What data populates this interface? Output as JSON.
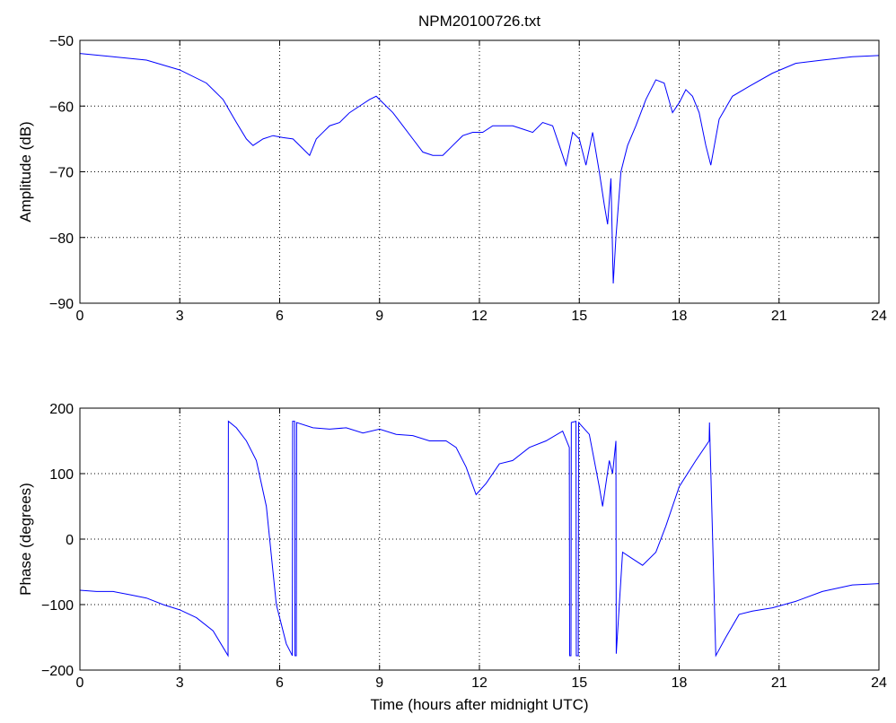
{
  "figure": {
    "title": "NPM20100726.txt",
    "background": "#ffffff",
    "line_color": "#0000ff"
  },
  "chart_data": [
    {
      "type": "line",
      "title": "NPM20100726.txt",
      "xlabel": "",
      "ylabel": "Amplitude (dB)",
      "xlim": [
        0,
        24
      ],
      "ylim": [
        -90,
        -50
      ],
      "xticks": [
        0,
        3,
        6,
        9,
        12,
        15,
        18,
        21,
        24
      ],
      "yticks": [
        -90,
        -80,
        -70,
        -60,
        -50
      ],
      "xtick_labels": [
        "0",
        "3",
        "6",
        "9",
        "12",
        "15",
        "18",
        "21",
        "24"
      ],
      "ytick_labels": [
        "−90",
        "−80",
        "−70",
        "−60",
        "−50"
      ],
      "grid": true,
      "series": [
        {
          "color": "#0000ff",
          "x": [
            0,
            1,
            2,
            3,
            3.8,
            4.3,
            4.7,
            5.0,
            5.2,
            5.5,
            5.8,
            6.1,
            6.4,
            6.7,
            6.9,
            7.1,
            7.3,
            7.5,
            7.8,
            8.1,
            8.4,
            8.7,
            8.9,
            9.1,
            9.4,
            9.7,
            10.0,
            10.3,
            10.6,
            10.9,
            11.2,
            11.5,
            11.8,
            12.1,
            12.4,
            12.7,
            13.0,
            13.3,
            13.6,
            13.9,
            14.2,
            14.4,
            14.6,
            14.8,
            15.0,
            15.2,
            15.4,
            15.6,
            15.75,
            15.85,
            15.95,
            16.02,
            16.1,
            16.25,
            16.45,
            16.7,
            17.0,
            17.3,
            17.55,
            17.8,
            18.0,
            18.2,
            18.4,
            18.6,
            18.8,
            18.95,
            19.2,
            19.6,
            20.1,
            20.8,
            21.5,
            22.3,
            23.2,
            24
          ],
          "y": [
            -52,
            -52.5,
            -53,
            -54.5,
            -56.5,
            -59,
            -62.5,
            -65,
            -66,
            -65,
            -64.5,
            -64.8,
            -65,
            -66.5,
            -67.5,
            -65,
            -64,
            -63,
            -62.5,
            -61,
            -60,
            -59,
            -58.5,
            -59.5,
            -61,
            -63,
            -65,
            -67,
            -67.5,
            -67.5,
            -66,
            -64.5,
            -64,
            -64,
            -63,
            -63,
            -63,
            -63.5,
            -64,
            -62.5,
            -63,
            -66,
            -69,
            -64,
            -65,
            -69,
            -64,
            -70,
            -75,
            -78,
            -71,
            -87,
            -80,
            -70,
            -66,
            -63,
            -59,
            -56,
            -56.5,
            -61,
            -59.5,
            -57.5,
            -58.5,
            -61,
            -66,
            -69,
            -62,
            -58.5,
            -57,
            -55,
            -53.5,
            -53,
            -52.5,
            -52.3
          ]
        }
      ]
    },
    {
      "type": "line",
      "title": "",
      "xlabel": "Time (hours after midnight UTC)",
      "ylabel": "Phase (degrees)",
      "xlim": [
        0,
        24
      ],
      "ylim": [
        -200,
        200
      ],
      "xticks": [
        0,
        3,
        6,
        9,
        12,
        15,
        18,
        21,
        24
      ],
      "yticks": [
        -200,
        -100,
        0,
        100,
        200
      ],
      "xtick_labels": [
        "0",
        "3",
        "6",
        "9",
        "12",
        "15",
        "18",
        "21",
        "24"
      ],
      "ytick_labels": [
        "−200",
        "−100",
        "0",
        "100",
        "200"
      ],
      "grid": true,
      "series": [
        {
          "color": "#0000ff",
          "x": [
            0,
            0.5,
            1,
            1.5,
            2,
            2.5,
            3,
            3.5,
            4,
            4.45,
            4.46,
            4.7,
            5.0,
            5.3,
            5.6,
            5.9,
            6.2,
            6.38,
            6.39,
            6.45,
            6.46,
            6.5,
            6.51,
            7.0,
            7.5,
            8.0,
            8.5,
            9.0,
            9.5,
            10.0,
            10.5,
            11.0,
            11.3,
            11.6,
            11.9,
            12.2,
            12.6,
            13.0,
            13.5,
            14.0,
            14.5,
            14.7,
            14.71,
            14.75,
            14.76,
            14.9,
            14.91,
            14.97,
            14.98,
            15.3,
            15.6,
            15.7,
            15.9,
            16.0,
            16.1,
            16.11,
            16.3,
            16.6,
            16.9,
            17.3,
            17.6,
            18.0,
            18.5,
            18.9,
            18.91,
            19.1,
            19.4,
            19.8,
            20.2,
            20.8,
            21.5,
            22.3,
            23.2,
            24
          ],
          "y": [
            -78,
            -80,
            -80,
            -85,
            -90,
            -100,
            -108,
            -120,
            -140,
            -178,
            180,
            170,
            150,
            120,
            50,
            -100,
            -160,
            -178,
            180,
            180,
            -178,
            -178,
            178,
            170,
            168,
            170,
            162,
            168,
            160,
            158,
            150,
            150,
            140,
            110,
            68,
            85,
            115,
            120,
            140,
            150,
            165,
            140,
            -178,
            -178,
            178,
            180,
            -178,
            -178,
            178,
            160,
            80,
            50,
            120,
            100,
            150,
            -175,
            -20,
            -30,
            -40,
            -20,
            20,
            80,
            120,
            150,
            178,
            -178,
            -150,
            -115,
            -110,
            -105,
            -95,
            -80,
            -70,
            -68
          ]
        }
      ]
    }
  ]
}
